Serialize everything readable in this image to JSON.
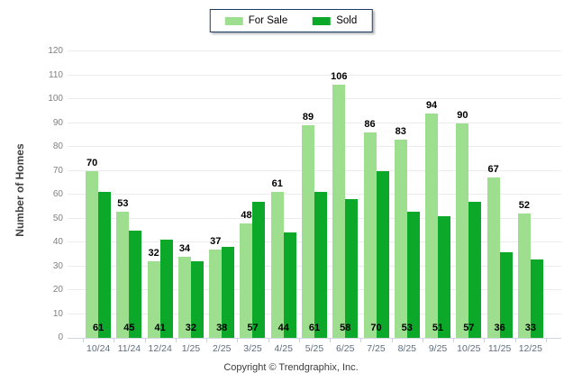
{
  "legend": {
    "items": [
      {
        "label": "For Sale",
        "color": "#9dde8f"
      },
      {
        "label": "Sold",
        "color": "#0ca82a"
      }
    ]
  },
  "y_axis": {
    "title": "Number of Homes"
  },
  "footer": {
    "text": "Copyright © Trendgraphix, Inc."
  },
  "colors": {
    "for_sale": "#9dde8f",
    "sold": "#0ca82a",
    "gridline": "#ececec",
    "baseline": "#d0d7de",
    "x_label": "#5f6e7e",
    "y_label": "#7f7f7f"
  },
  "chart_data": {
    "type": "bar",
    "title": "",
    "categories": [
      "10/24",
      "11/24",
      "12/24",
      "1/25",
      "2/25",
      "3/25",
      "4/25",
      "5/25",
      "6/25",
      "7/25",
      "8/25",
      "9/25",
      "10/25",
      "11/25",
      "12/25"
    ],
    "series": [
      {
        "name": "For Sale",
        "color": "#9dde8f",
        "values": [
          70,
          53,
          32,
          34,
          37,
          48,
          61,
          89,
          106,
          86,
          83,
          94,
          90,
          67,
          52
        ]
      },
      {
        "name": "Sold",
        "color": "#0ca82a",
        "values": [
          61,
          45,
          41,
          32,
          38,
          57,
          44,
          61,
          58,
          70,
          53,
          51,
          57,
          36,
          33
        ]
      }
    ],
    "xlabel": "",
    "ylabel": "Number of Homes",
    "ylim": [
      0,
      120
    ],
    "ytick_step": 10,
    "grid": true,
    "legend_position": "top-center",
    "value_labels": {
      "for_sale_position": "above light bar",
      "sold_position": "at bar bottom, centered on pair boundary"
    }
  }
}
